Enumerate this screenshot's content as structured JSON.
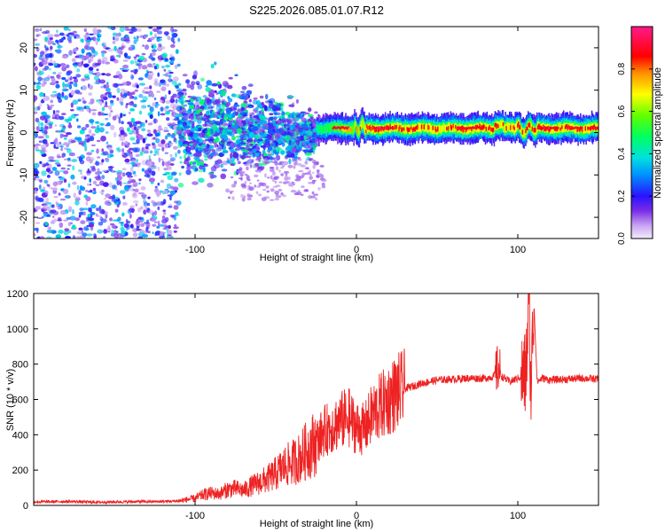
{
  "figure": {
    "title": "S225.2026.085.01.07.R12"
  },
  "chart_data": [
    {
      "type": "heatmap",
      "title": "S225.2026.085.01.07.R12",
      "xlabel": "Height of straight line (km)",
      "ylabel": "Frequency (Hz)",
      "xlim": [
        -200,
        150
      ],
      "ylim": [
        -25,
        25
      ],
      "xticks": [
        -100,
        0,
        100
      ],
      "yticks": [
        -20,
        -10,
        0,
        10,
        20
      ],
      "colorbar": {
        "label": "Normalized spectral amplitude",
        "range": [
          0.0,
          1.0
        ],
        "ticks": [
          0.0,
          0.2,
          0.4,
          0.6,
          0.8
        ],
        "colormap": [
          "#e6d5f5",
          "#a060f0",
          "#5010e0",
          "#2020ff",
          "#00c8ff",
          "#00ff80",
          "#40ff00",
          "#c8ff00",
          "#ffff00",
          "#ff8000",
          "#ff0000",
          "#ff1060",
          "#ff2080"
        ]
      },
      "description_regions": [
        {
          "x_range": [
            -200,
            -110
          ],
          "freq_range": [
            -25,
            25
          ],
          "amplitude": [
            0.05,
            0.35
          ],
          "pattern": "scattered noise"
        },
        {
          "x_range": [
            -110,
            -25
          ],
          "freq_range": [
            -12,
            12
          ],
          "amplitude": [
            0.1,
            0.4
          ],
          "pattern": "noisy cluster narrowing"
        },
        {
          "x_range": [
            -25,
            150
          ],
          "freq_range": [
            -1.5,
            3
          ],
          "amplitude": [
            0.4,
            1.0
          ],
          "pattern": "narrow band near +1 Hz"
        }
      ]
    },
    {
      "type": "line",
      "xlabel": "Height of straight line (km)",
      "ylabel": "SNR (10 * v/v)",
      "xlim": [
        -200,
        150
      ],
      "ylim": [
        0,
        1200
      ],
      "xticks": [
        -100,
        0,
        100
      ],
      "yticks": [
        0,
        200,
        400,
        600,
        800,
        1000,
        1200
      ],
      "line_color": "#ee2222",
      "series": [
        {
          "name": "SNR",
          "x": [
            -200,
            -180,
            -160,
            -140,
            -120,
            -110,
            -100,
            -95,
            -90,
            -85,
            -80,
            -75,
            -70,
            -65,
            -60,
            -55,
            -50,
            -45,
            -40,
            -35,
            -30,
            -25,
            -20,
            -15,
            -10,
            -5,
            0,
            5,
            10,
            15,
            20,
            25,
            30,
            40,
            50,
            60,
            70,
            80,
            85,
            88,
            90,
            95,
            100,
            105,
            107,
            108,
            110,
            112,
            115,
            120,
            130,
            140,
            150
          ],
          "y": [
            20,
            22,
            18,
            21,
            22,
            25,
            40,
            60,
            70,
            65,
            90,
            95,
            85,
            110,
            130,
            150,
            180,
            220,
            240,
            270,
            320,
            360,
            420,
            450,
            480,
            500,
            440,
            430,
            520,
            560,
            600,
            640,
            660,
            690,
            710,
            715,
            720,
            720,
            730,
            780,
            730,
            700,
            720,
            740,
            1180,
            640,
            1150,
            700,
            720,
            710,
            715,
            720,
            715
          ]
        }
      ]
    }
  ]
}
